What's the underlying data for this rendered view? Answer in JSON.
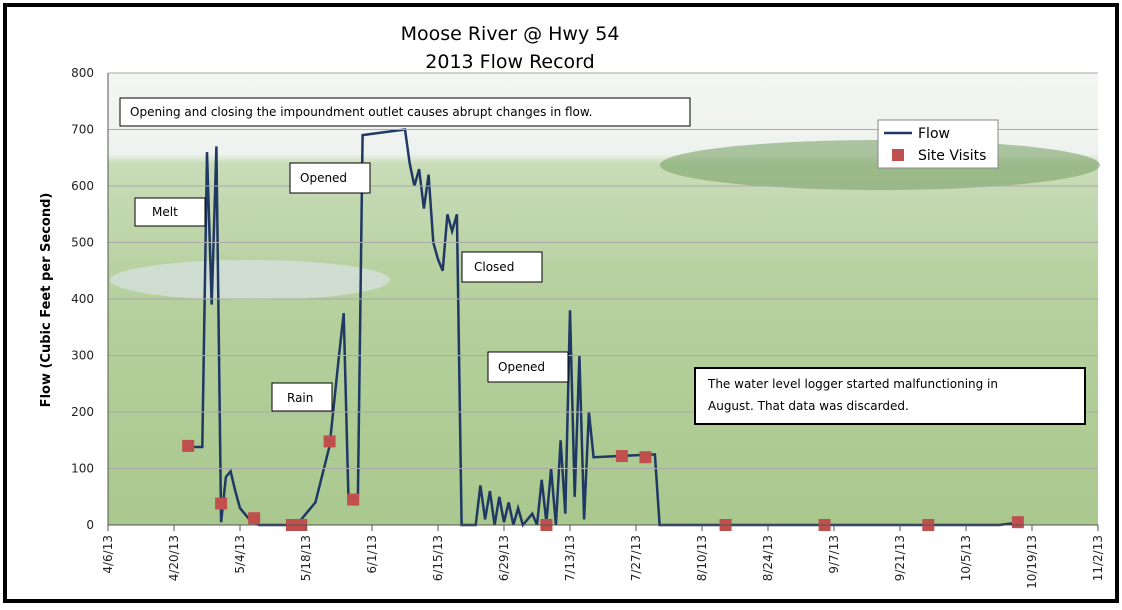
{
  "chart_data": {
    "type": "line",
    "title": "Moose River @ Hwy 54",
    "subtitle": "2013 Flow Record",
    "y_label": "Flow (Cubic Feet per Second)",
    "ylim": [
      0,
      800
    ],
    "yticks": [
      0,
      100,
      200,
      300,
      400,
      500,
      600,
      700,
      800
    ],
    "grid": true,
    "xlim": [
      "4/6/13",
      "11/2/13"
    ],
    "xticks": [
      "4/6/13",
      "4/20/13",
      "5/4/13",
      "5/18/13",
      "6/1/13",
      "6/15/13",
      "6/29/13",
      "7/13/13",
      "7/27/13",
      "8/10/13",
      "8/24/13",
      "9/7/13",
      "9/21/13",
      "10/5/13",
      "10/19/13",
      "11/2/13"
    ],
    "legend": "top-right",
    "series": [
      {
        "name": "Flow",
        "color": "#1f3864",
        "kind": "line",
        "x": [
          "4/23/13",
          "4/26/13",
          "4/27/13",
          "4/28/13",
          "4/29/13",
          "4/30/13",
          "5/1/13",
          "5/2/13",
          "5/3/13",
          "5/4/13",
          "5/6/13",
          "5/8/13",
          "5/16/13",
          "5/20/13",
          "5/23/13",
          "5/25/13",
          "5/26/13",
          "5/27/13",
          "5/29/13",
          "5/30/13",
          "6/8/13",
          "6/9/13",
          "6/10/13",
          "6/11/13",
          "6/12/13",
          "6/13/13",
          "6/14/13",
          "6/15/13",
          "6/16/13",
          "6/17/13",
          "6/18/13",
          "6/19/13",
          "6/20/13",
          "6/23/13",
          "6/24/13",
          "6/25/13",
          "6/26/13",
          "6/27/13",
          "6/28/13",
          "6/29/13",
          "6/30/13",
          "7/1/13",
          "7/2/13",
          "7/3/13",
          "7/5/13",
          "7/6/13",
          "7/7/13",
          "7/8/13",
          "7/9/13",
          "7/10/13",
          "7/11/13",
          "7/12/13",
          "7/13/13",
          "7/14/13",
          "7/15/13",
          "7/16/13",
          "7/17/13",
          "7/18/13",
          "7/31/13",
          "8/1/13",
          "10/12/13",
          "10/17/13"
        ],
        "values": [
          138,
          138,
          660,
          390,
          670,
          5,
          85,
          95,
          60,
          30,
          10,
          0,
          0,
          40,
          140,
          300,
          375,
          50,
          50,
          690,
          700,
          640,
          600,
          630,
          560,
          620,
          500,
          470,
          450,
          550,
          520,
          550,
          0,
          0,
          70,
          10,
          60,
          0,
          50,
          5,
          40,
          0,
          30,
          0,
          20,
          0,
          80,
          5,
          100,
          0,
          150,
          20,
          380,
          50,
          300,
          10,
          200,
          120,
          125,
          0,
          0,
          5
        ]
      },
      {
        "name": "Site Visits",
        "color": "#c0504d",
        "kind": "scatter",
        "x": [
          "4/23/13",
          "4/30/13",
          "5/7/13",
          "5/15/13",
          "5/17/13",
          "5/23/13",
          "5/28/13",
          "7/8/13",
          "7/24/13",
          "7/29/13",
          "8/15/13",
          "9/5/13",
          "9/27/13",
          "10/16/13"
        ],
        "values": [
          140,
          38,
          12,
          0,
          0,
          148,
          45,
          0,
          122,
          120,
          0,
          0,
          0,
          5
        ]
      }
    ],
    "annotations": [
      "Opening and closing the impoundment  outlet causes abrupt changes in flow.",
      "Melt",
      "Opened",
      "Closed",
      "Rain",
      "Opened",
      "The water level logger started malfunctioning in",
      "August. That data was discarded."
    ]
  }
}
